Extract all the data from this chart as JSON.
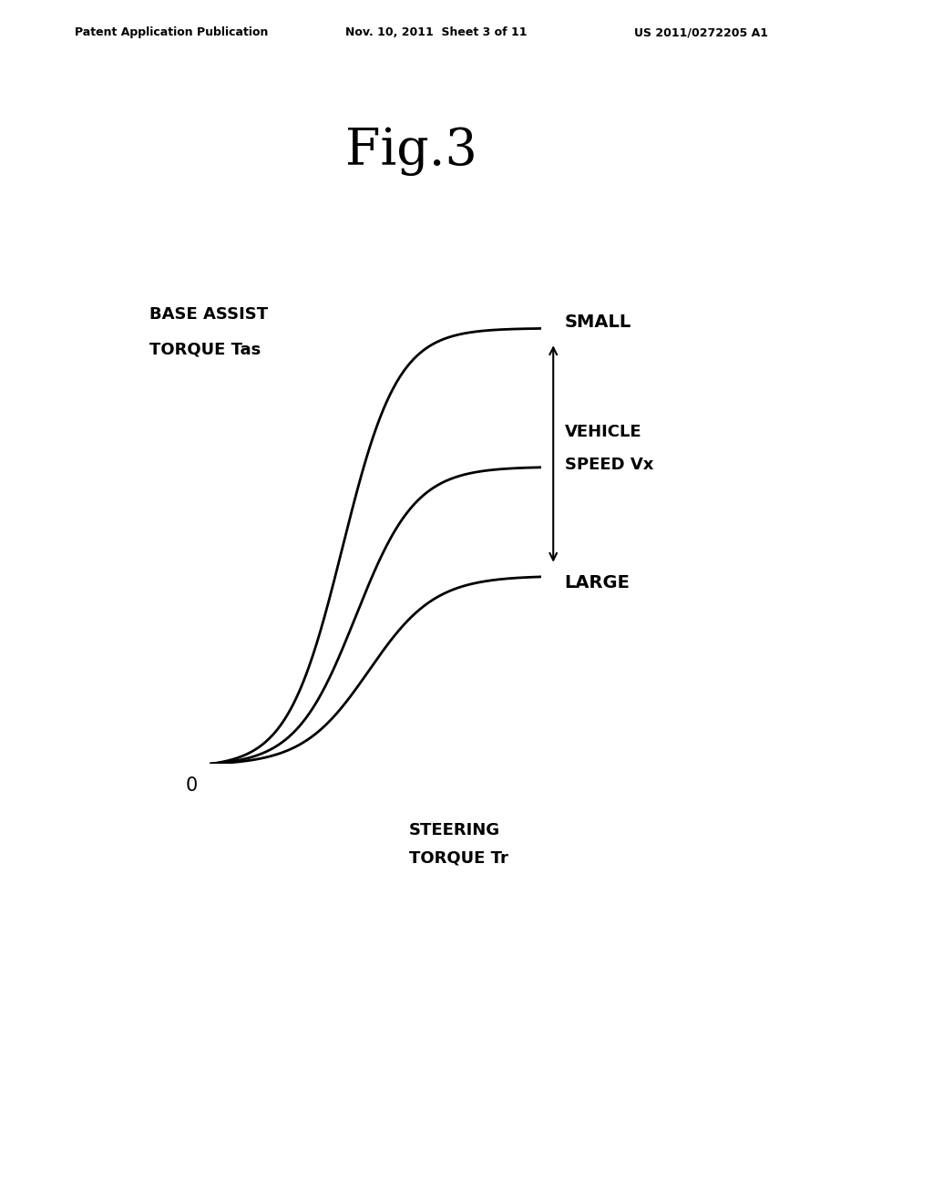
{
  "title": "Fig.3",
  "header_left": "Patent Application Publication",
  "header_mid": "Nov. 10, 2011  Sheet 3 of 11",
  "header_right": "US 2011/0272205 A1",
  "ylabel_line1": "BASE ASSIST",
  "ylabel_line2": "TORQUE Tas",
  "xlabel_line1": "STEERING",
  "xlabel_line2": "TORQUE Tr",
  "label_small": "SMALL",
  "label_large": "LARGE",
  "label_speed_line1": "VEHICLE",
  "label_speed_line2": "SPEED Vx",
  "zero_label": "0",
  "background_color": "#ffffff",
  "line_color": "#000000",
  "curves": [
    {
      "saturation": 0.88,
      "steepness": 12.0,
      "inflection": 0.4
    },
    {
      "saturation": 0.6,
      "steepness": 11.0,
      "inflection": 0.44
    },
    {
      "saturation": 0.38,
      "steepness": 10.0,
      "inflection": 0.48
    }
  ]
}
